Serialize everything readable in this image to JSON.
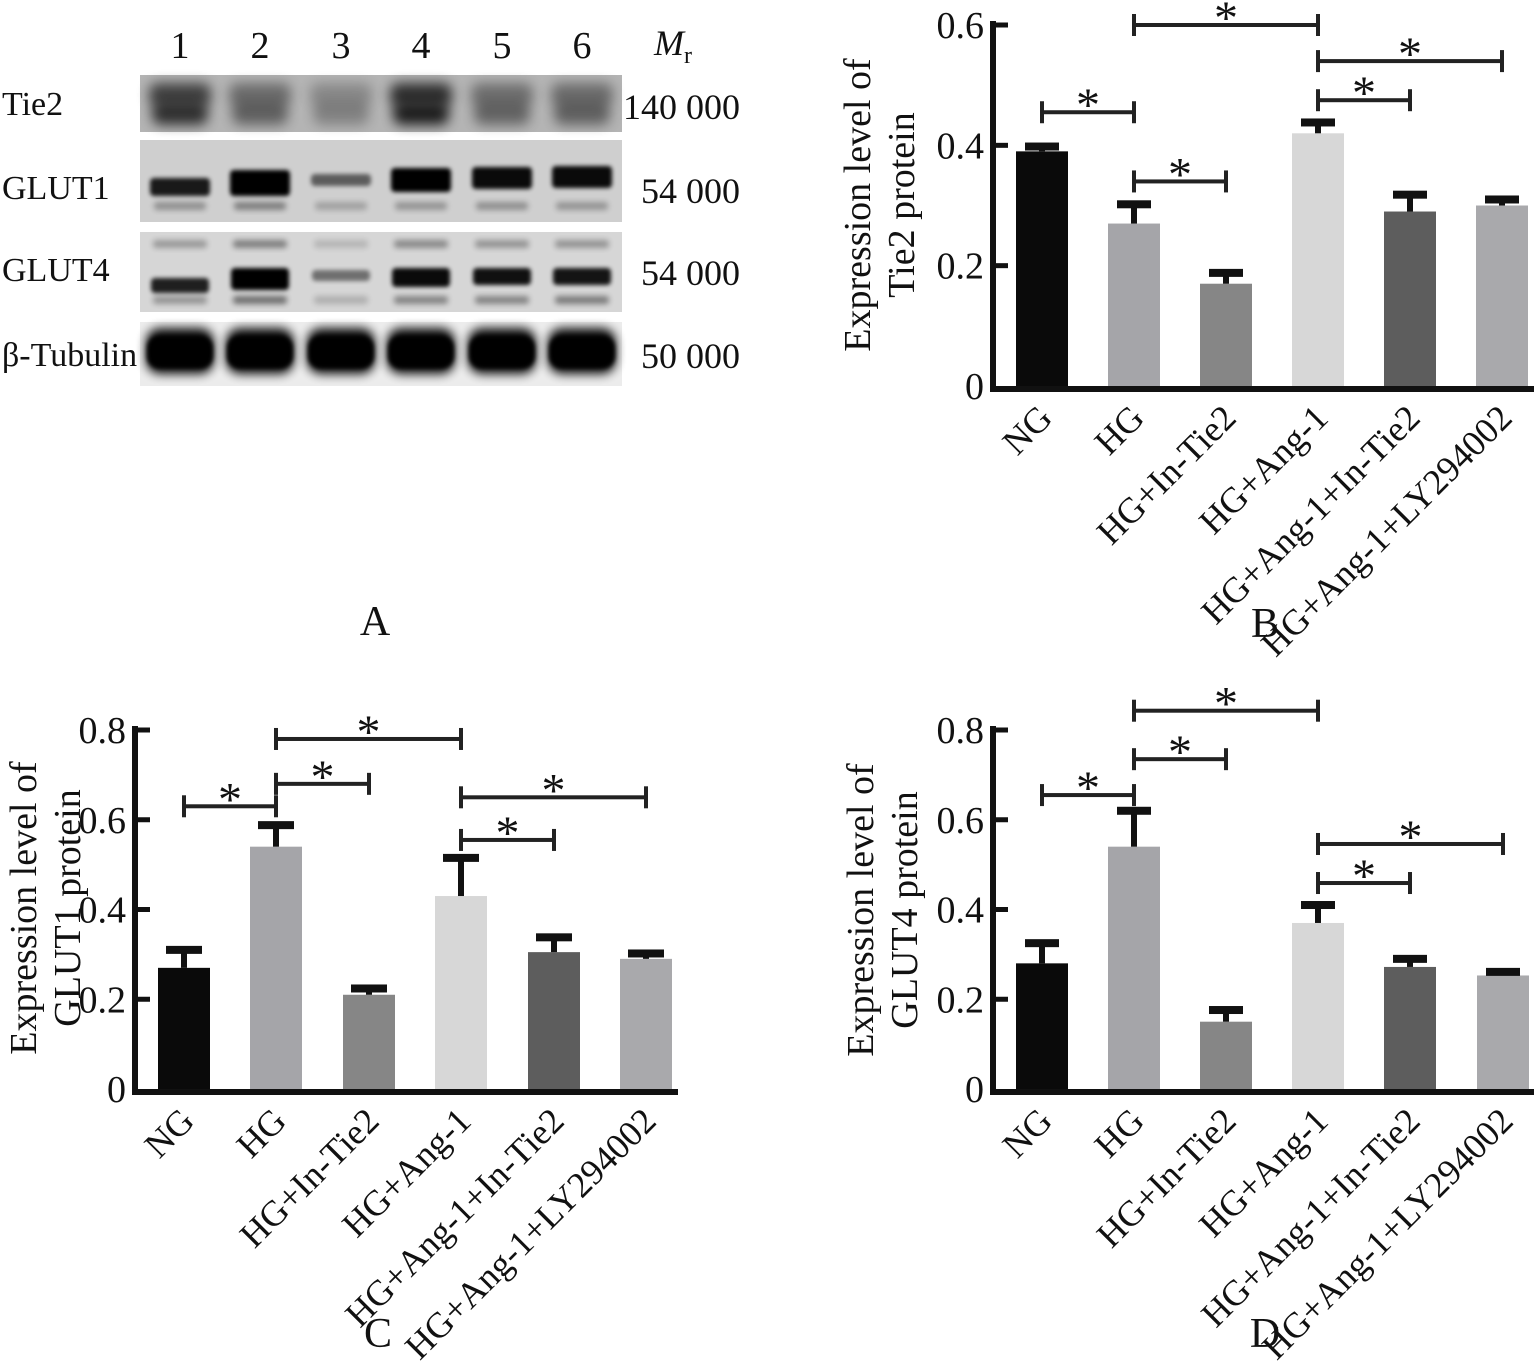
{
  "panel_a": {
    "label": "A",
    "lanes": [
      "1",
      "2",
      "3",
      "4",
      "5",
      "6"
    ],
    "mr_header": {
      "symbol": "M",
      "subscript": "r"
    },
    "rows": [
      {
        "protein": "Tie2",
        "mr": "140 000",
        "pattern": "smear",
        "band_intensity": [
          0.8,
          0.5,
          0.3,
          0.92,
          0.48,
          0.5
        ]
      },
      {
        "protein": "GLUT1",
        "mr": "54 000",
        "pattern": "sharp",
        "band_intensity": [
          0.88,
          1.0,
          0.55,
          1.0,
          0.95,
          0.95
        ],
        "secondary_intensity": [
          0.3,
          0.38,
          0.22,
          0.28,
          0.3,
          0.28
        ]
      },
      {
        "protein": "GLUT4",
        "mr": "54 000",
        "pattern": "sharp",
        "band_intensity": [
          0.85,
          1.0,
          0.48,
          0.95,
          0.92,
          0.9
        ],
        "secondary_intensity": [
          0.3,
          0.48,
          0.18,
          0.38,
          0.38,
          0.42
        ],
        "tertiary_intensity": [
          0.28,
          0.4,
          0.15,
          0.35,
          0.3,
          0.3
        ]
      },
      {
        "protein": "β-Tubulin",
        "mr": "50 000",
        "pattern": "blob",
        "band_intensity": [
          1,
          1,
          1,
          1,
          1,
          1
        ]
      }
    ]
  },
  "panel_letters": {
    "a": "A",
    "b": "B",
    "c": "C",
    "d": "D"
  },
  "groups": [
    "NG",
    "HG",
    "HG+In-Tie2",
    "HG+Ang-1",
    "HG+Ang-1+In-Tie2",
    "HG+Ang-1+LY294002"
  ],
  "bar_colors": [
    "#0a0a0a",
    "#a5a5a9",
    "#868686",
    "#d7d7d7",
    "#5d5d5d",
    "#a9a9ac"
  ],
  "chart_data": [
    {
      "panel": "B",
      "type": "bar",
      "ylabel_lines": [
        "Expression level of",
        "Tie2 protein"
      ],
      "categories": [
        "NG",
        "HG",
        "HG+In-Tie2",
        "HG+Ang-1",
        "HG+Ang-1+In-Tie2",
        "HG+Ang-1+LY294002"
      ],
      "values": [
        0.39,
        0.27,
        0.17,
        0.42,
        0.29,
        0.3
      ],
      "errors": [
        0.008,
        0.032,
        0.018,
        0.018,
        0.028,
        0.01
      ],
      "ylim": [
        0,
        0.6
      ],
      "yticks": [
        0,
        0.2,
        0.4,
        0.6
      ],
      "grid": false,
      "significance": [
        {
          "groups": [
            0,
            1
          ],
          "height": 0.455,
          "label": "*"
        },
        {
          "groups": [
            1,
            2
          ],
          "height": 0.34,
          "label": "*"
        },
        {
          "groups": [
            1,
            3
          ],
          "height": 0.6,
          "label": "*"
        },
        {
          "groups": [
            3,
            4
          ],
          "height": 0.475,
          "label": "*"
        },
        {
          "groups": [
            3,
            5
          ],
          "height": 0.54,
          "label": "*"
        }
      ]
    },
    {
      "panel": "C",
      "type": "bar",
      "ylabel_lines": [
        "Expression level of",
        "GLUT1 protein"
      ],
      "categories": [
        "NG",
        "HG",
        "HG+In-Tie2",
        "HG+Ang-1",
        "HG+Ang-1+In-Tie2",
        "HG+Ang-1+LY294002"
      ],
      "values": [
        0.27,
        0.54,
        0.21,
        0.43,
        0.305,
        0.29
      ],
      "errors": [
        0.04,
        0.048,
        0.014,
        0.085,
        0.033,
        0.012
      ],
      "ylim": [
        0,
        0.8
      ],
      "yticks": [
        0,
        0.2,
        0.4,
        0.6,
        0.8
      ],
      "grid": false,
      "significance": [
        {
          "groups": [
            0,
            1
          ],
          "height": 0.63,
          "label": "*"
        },
        {
          "groups": [
            1,
            2
          ],
          "height": 0.68,
          "label": "*"
        },
        {
          "groups": [
            1,
            3
          ],
          "height": 0.78,
          "label": "*"
        },
        {
          "groups": [
            3,
            4
          ],
          "height": 0.555,
          "label": "*"
        },
        {
          "groups": [
            3,
            5
          ],
          "height": 0.65,
          "label": "*"
        }
      ]
    },
    {
      "panel": "D",
      "type": "bar",
      "ylabel_lines": [
        "Expression level of",
        "GLUT4 protein"
      ],
      "categories": [
        "NG",
        "HG",
        "HG+In-Tie2",
        "HG+Ang-1",
        "HG+Ang-1+In-Tie2",
        "HG+Ang-1+LY294002"
      ],
      "values": [
        0.28,
        0.54,
        0.15,
        0.37,
        0.272,
        0.253
      ],
      "errors": [
        0.045,
        0.08,
        0.026,
        0.04,
        0.018,
        0.008
      ],
      "ylim": [
        0,
        0.8
      ],
      "yticks": [
        0,
        0.2,
        0.4,
        0.6,
        0.8
      ],
      "grid": false,
      "significance": [
        {
          "groups": [
            0,
            1
          ],
          "height": 0.655,
          "label": "*"
        },
        {
          "groups": [
            1,
            2
          ],
          "height": 0.735,
          "label": "*"
        },
        {
          "groups": [
            1,
            3
          ],
          "height": 0.843,
          "label": "*"
        },
        {
          "groups": [
            3,
            4
          ],
          "height": 0.459,
          "label": "*"
        },
        {
          "groups": [
            3,
            5
          ],
          "height": 0.546,
          "label": "*"
        }
      ]
    }
  ]
}
